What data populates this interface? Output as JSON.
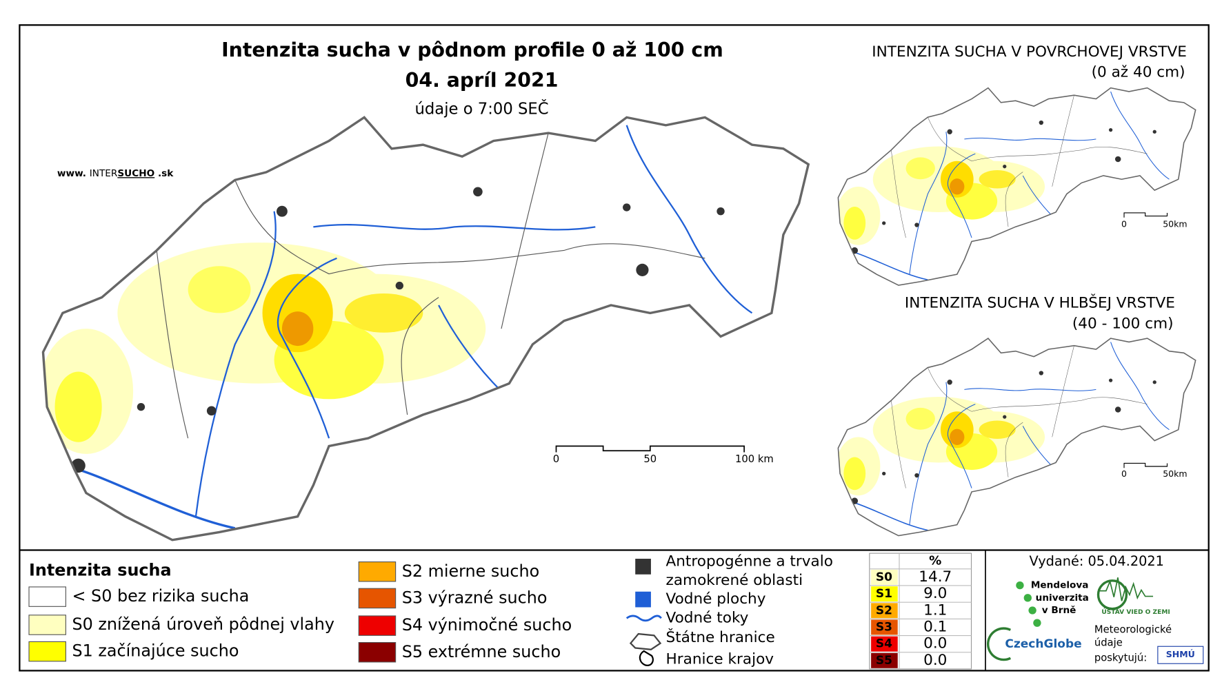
{
  "header": {
    "title": "Intenzita sucha v pôdnom profile 0 až 100 cm",
    "date": "04. apríl 2021",
    "note": "údaje o 7:00 SEČ"
  },
  "website": {
    "prefix": "www.",
    "inter": "INTER",
    "sucho": "SUCHO",
    "suffix": ".sk"
  },
  "main_map": {
    "scale_labels": [
      "0",
      "50",
      "100 km"
    ]
  },
  "inset_maps": [
    {
      "title": "INTENZITA SUCHA V POVRCHOVEJ VRSTVE",
      "subtitle": "(0 až 40 cm)",
      "scale_labels": [
        "0",
        "50km"
      ]
    },
    {
      "title": "INTENZITA SUCHA V HLBŠEJ VRSTVE",
      "subtitle": "(40 - 100 cm)",
      "scale_labels": [
        "0",
        "50km"
      ]
    }
  ],
  "legend": {
    "title": "Intenzita sucha",
    "items": [
      {
        "label": "< S0 bez rizika sucha",
        "color": "#ffffff"
      },
      {
        "label": "S0 znížená úroveň pôdnej vlahy",
        "color": "#ffffc0"
      },
      {
        "label": "S1 začínajúce sucho",
        "color": "#ffff00"
      },
      {
        "label": "S2 mierne sucho",
        "color": "#ffaa00"
      },
      {
        "label": "S3 výrazné sucho",
        "color": "#e65500"
      },
      {
        "label": "S4 výnimočné sucho",
        "color": "#ee0000"
      },
      {
        "label": "S5 extrémne sucho",
        "color": "#8b0000"
      }
    ]
  },
  "layers_legend": {
    "anthropogenic": [
      "Antropogénne a trvalo",
      "zamokrené oblasti"
    ],
    "water_bodies": "Vodné plochy",
    "rivers": "Vodné toky",
    "state_borders": "Štátne hranice",
    "region_borders": "Hranice krajov"
  },
  "stats_table": {
    "header": "%",
    "rows": [
      [
        "S0",
        "14.7"
      ],
      [
        "S1",
        "9.0"
      ],
      [
        "S2",
        "1.1"
      ],
      [
        "S3",
        "0.1"
      ],
      [
        "S4",
        "0.0"
      ],
      [
        "S5",
        "0.0"
      ]
    ]
  },
  "issued": "Vydané: 05.04.2021",
  "logos": {
    "mendelu": [
      "Mendelova",
      "univerzita",
      "v Brně"
    ],
    "czechglobe": "CzechGlobe",
    "uvz": "ÚSTAV VIED O ZEMI",
    "provider": [
      "Meteorologické",
      "údaje",
      "poskytujú:"
    ],
    "shmu": "SHMÚ"
  }
}
